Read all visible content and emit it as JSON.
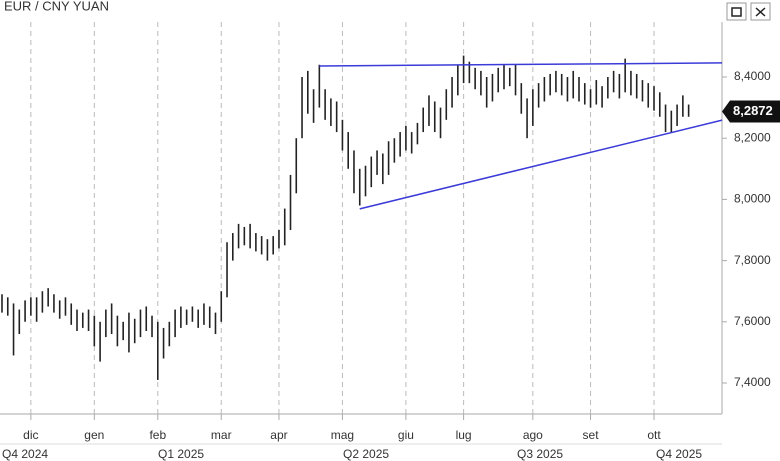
{
  "chart_data": {
    "type": "ohlc",
    "title": "EUR / CNY YUAN",
    "categories": [
      null,
      null,
      null,
      null,
      null,
      "dic",
      null,
      null,
      null,
      null,
      null,
      null,
      null,
      null,
      null,
      null,
      "gen",
      null,
      null,
      null,
      null,
      null,
      null,
      null,
      null,
      null,
      null,
      "feb",
      null,
      null,
      null,
      null,
      null,
      null,
      null,
      null,
      null,
      null,
      "mar",
      null,
      null,
      null,
      null,
      null,
      null,
      null,
      null,
      null,
      "apr",
      null,
      null,
      null,
      null,
      null,
      null,
      null,
      null,
      null,
      null,
      "mag",
      null,
      null,
      null,
      null,
      null,
      null,
      null,
      null,
      null,
      null,
      "giu",
      null,
      null,
      null,
      null,
      null,
      null,
      null,
      null,
      null,
      "lug",
      null,
      null,
      null,
      null,
      null,
      null,
      null,
      null,
      null,
      null,
      null,
      "ago",
      null,
      null,
      null,
      null,
      null,
      null,
      null,
      null,
      null,
      "set",
      null,
      null,
      null,
      null,
      null,
      null,
      null,
      null,
      null,
      null,
      "ott",
      null,
      null,
      null,
      null,
      null,
      null
    ],
    "high": [
      7.69,
      7.68,
      7.66,
      7.64,
      7.67,
      7.68,
      7.68,
      7.7,
      7.71,
      7.69,
      7.67,
      7.68,
      7.66,
      7.64,
      7.63,
      7.64,
      7.62,
      7.6,
      7.64,
      7.66,
      7.62,
      7.6,
      7.63,
      7.61,
      7.64,
      7.65,
      7.62,
      7.6,
      7.58,
      7.6,
      7.64,
      7.65,
      7.64,
      7.65,
      7.64,
      7.66,
      7.65,
      7.63,
      7.7,
      7.86,
      7.89,
      7.92,
      7.91,
      7.92,
      7.89,
      7.88,
      7.87,
      7.88,
      7.9,
      7.97,
      8.08,
      8.2,
      8.4,
      8.42,
      8.36,
      8.44,
      8.36,
      8.33,
      8.32,
      8.26,
      8.22,
      8.16,
      8.1,
      8.11,
      8.14,
      8.16,
      8.15,
      8.19,
      8.2,
      8.22,
      8.24,
      8.22,
      8.25,
      8.3,
      8.34,
      8.32,
      8.3,
      8.36,
      8.4,
      8.44,
      8.47,
      8.45,
      8.43,
      8.42,
      8.4,
      8.41,
      8.43,
      8.44,
      8.43,
      8.44,
      8.38,
      8.33,
      8.36,
      8.38,
      8.4,
      8.41,
      8.42,
      8.41,
      8.4,
      8.42,
      8.4,
      8.38,
      8.36,
      8.39,
      8.37,
      8.4,
      8.42,
      8.41,
      8.46,
      8.42,
      8.41,
      8.39,
      8.38,
      8.37,
      8.35,
      8.31,
      8.29,
      8.31,
      8.34,
      8.31
    ],
    "low": [
      7.63,
      7.62,
      7.49,
      7.56,
      7.6,
      7.62,
      7.6,
      7.63,
      7.65,
      7.63,
      7.61,
      7.62,
      7.59,
      7.57,
      7.58,
      7.57,
      7.52,
      7.47,
      7.55,
      7.56,
      7.52,
      7.54,
      7.5,
      7.53,
      7.55,
      7.57,
      7.55,
      7.41,
      7.48,
      7.52,
      7.55,
      7.58,
      7.59,
      7.6,
      7.58,
      7.59,
      7.58,
      7.56,
      7.6,
      7.68,
      7.8,
      7.84,
      7.85,
      7.84,
      7.83,
      7.82,
      7.8,
      7.82,
      7.84,
      7.85,
      7.9,
      8.02,
      8.2,
      8.28,
      8.25,
      8.3,
      8.26,
      8.24,
      8.22,
      8.16,
      8.1,
      8.02,
      7.98,
      8.01,
      8.04,
      8.08,
      8.05,
      8.08,
      8.12,
      8.14,
      8.16,
      8.15,
      8.18,
      8.22,
      8.24,
      8.22,
      8.2,
      8.26,
      8.3,
      8.34,
      8.38,
      8.38,
      8.36,
      8.34,
      8.3,
      8.32,
      8.35,
      8.36,
      8.37,
      8.34,
      8.28,
      8.2,
      8.24,
      8.3,
      8.32,
      8.34,
      8.35,
      8.34,
      8.32,
      8.33,
      8.32,
      8.31,
      8.3,
      8.31,
      8.3,
      8.33,
      8.35,
      8.33,
      8.35,
      8.34,
      8.33,
      8.32,
      8.3,
      8.29,
      8.27,
      8.22,
      8.22,
      8.24,
      8.27,
      8.27
    ],
    "color": "#222222",
    "ylim": [
      7.3,
      8.65
    ],
    "yticks": [
      {
        "value": 7.4,
        "label": "7,4000"
      },
      {
        "value": 7.6,
        "label": "7,6000"
      },
      {
        "value": 7.8,
        "label": "7,8000"
      },
      {
        "value": 8.0,
        "label": "8,0000"
      },
      {
        "value": 8.2,
        "label": "8,2000"
      },
      {
        "value": 8.4,
        "label": "8,4000"
      }
    ],
    "quarters": [
      "Q4 2024",
      "Q1 2025",
      "Q2 2025",
      "Q3 2025",
      "Q4 2025"
    ],
    "trendlines": [
      {
        "x": [
          55,
          124.8
        ],
        "values": [
          8.436,
          8.446
        ]
      },
      {
        "x": [
          62,
          124.8
        ],
        "values": [
          7.969,
          8.259
        ]
      }
    ],
    "trendline_color": "#3b3bd8",
    "last_value": {
      "value": 8.2872,
      "label": "8,2872"
    },
    "grid": true
  }
}
